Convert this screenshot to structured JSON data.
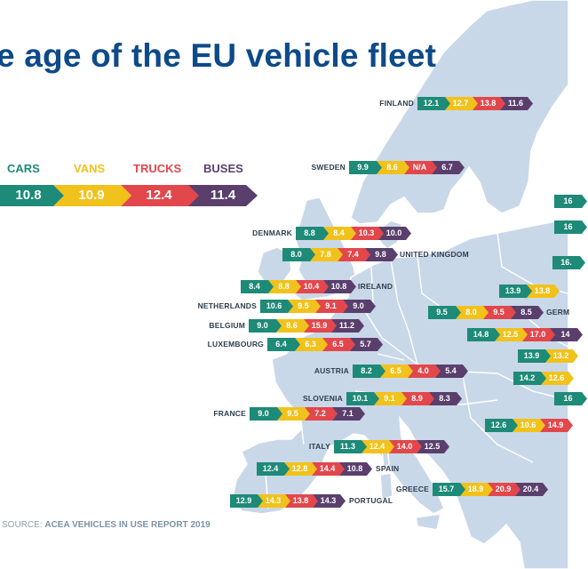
{
  "title": "e age of the EU vehicle fleet",
  "source": {
    "prefix": "SOURCE: ",
    "text": "ACEA VEHICLES IN USE REPORT 2019"
  },
  "colors": {
    "cars": "#1e8a78",
    "vans": "#f1c21b",
    "trucks": "#e2474c",
    "buses": "#5a3f6d",
    "sea": "#ffffff",
    "land": "#c9d8e8",
    "border": "#ffffff",
    "title": "#0d4a8a"
  },
  "legend": {
    "cars_label": "CARS",
    "vans_label": "VANS",
    "trucks_label": "TRUCKS",
    "buses_label": "BUSES",
    "cars_value": "10.8",
    "vans_value": "10.9",
    "trucks_value": "12.4",
    "buses_value": "11.4"
  },
  "countries": [
    {
      "name": "FINLAND",
      "label_side": "left",
      "values": [
        "12.1",
        "12.7",
        "13.8",
        "11.6"
      ]
    },
    {
      "name": "SWEDEN",
      "label_side": "left",
      "values": [
        "9.9",
        "8.6",
        "N/A",
        "6.7"
      ]
    },
    {
      "name": "DENMARK",
      "label_side": "left",
      "values": [
        "8.8",
        "8.4",
        "10.3",
        "10.0"
      ]
    },
    {
      "name": "UNITED KINGDOM",
      "label_side": "right",
      "values": [
        "8.0",
        "7.8",
        "7.4",
        "9.8"
      ]
    },
    {
      "name": "IRELAND",
      "label_side": "right",
      "values": [
        "8.4",
        "8.8",
        "10.4",
        "10.8"
      ]
    },
    {
      "name": "NETHERLANDS",
      "label_side": "left",
      "values": [
        "10.6",
        "9.5",
        "9.1",
        "9.0"
      ]
    },
    {
      "name": "BELGIUM",
      "label_side": "left",
      "values": [
        "9.0",
        "8.6",
        "15.9",
        "11.2"
      ]
    },
    {
      "name": "LUXEMBOURG",
      "label_side": "left",
      "values": [
        "6.4",
        "6.3",
        "6.5",
        "5.7"
      ]
    },
    {
      "name": "GERM",
      "label_side": "right",
      "values": [
        "9.5",
        "8.0",
        "9.5",
        "8.5"
      ]
    },
    {
      "name": "AUSTRIA",
      "label_side": "left",
      "values": [
        "8.2",
        "6.5",
        "4.0",
        "5.4"
      ]
    },
    {
      "name": "SLOVENIA",
      "label_side": "left",
      "values": [
        "10.1",
        "9.1",
        "8.9",
        "8.3"
      ]
    },
    {
      "name": "FRANCE",
      "label_side": "left",
      "values": [
        "9.0",
        "9.5",
        "7.2",
        "7.1"
      ]
    },
    {
      "name": "ITALY",
      "label_side": "left",
      "values": [
        "11.3",
        "12.4",
        "14.0",
        "12.5"
      ]
    },
    {
      "name": "SPAIN",
      "label_side": "right",
      "values": [
        "12.4",
        "12.8",
        "14.4",
        "10.8"
      ]
    },
    {
      "name": "GREECE",
      "label_side": "left",
      "values": [
        "15.7",
        "18.9",
        "20.9",
        "20.4"
      ]
    },
    {
      "name": "PORTUGAL",
      "label_side": "right",
      "values": [
        "12.9",
        "14.3",
        "13.8",
        "14.3"
      ]
    }
  ],
  "unlabeled_cropped_bars": [
    {
      "values": [
        "16"
      ]
    },
    {
      "values": [
        "16"
      ]
    },
    {
      "values": [
        "16."
      ]
    },
    {
      "values": [
        "13.9",
        "13.8"
      ]
    },
    {
      "values": [
        "14.8",
        "12.5",
        "17.0",
        "14"
      ]
    },
    {
      "values": [
        "13.9",
        "13.2"
      ]
    },
    {
      "values": [
        "14.2",
        "12.6"
      ]
    },
    {
      "values": [
        "16"
      ]
    },
    {
      "values": [
        "12.6",
        "10.6",
        "14.9"
      ]
    }
  ]
}
